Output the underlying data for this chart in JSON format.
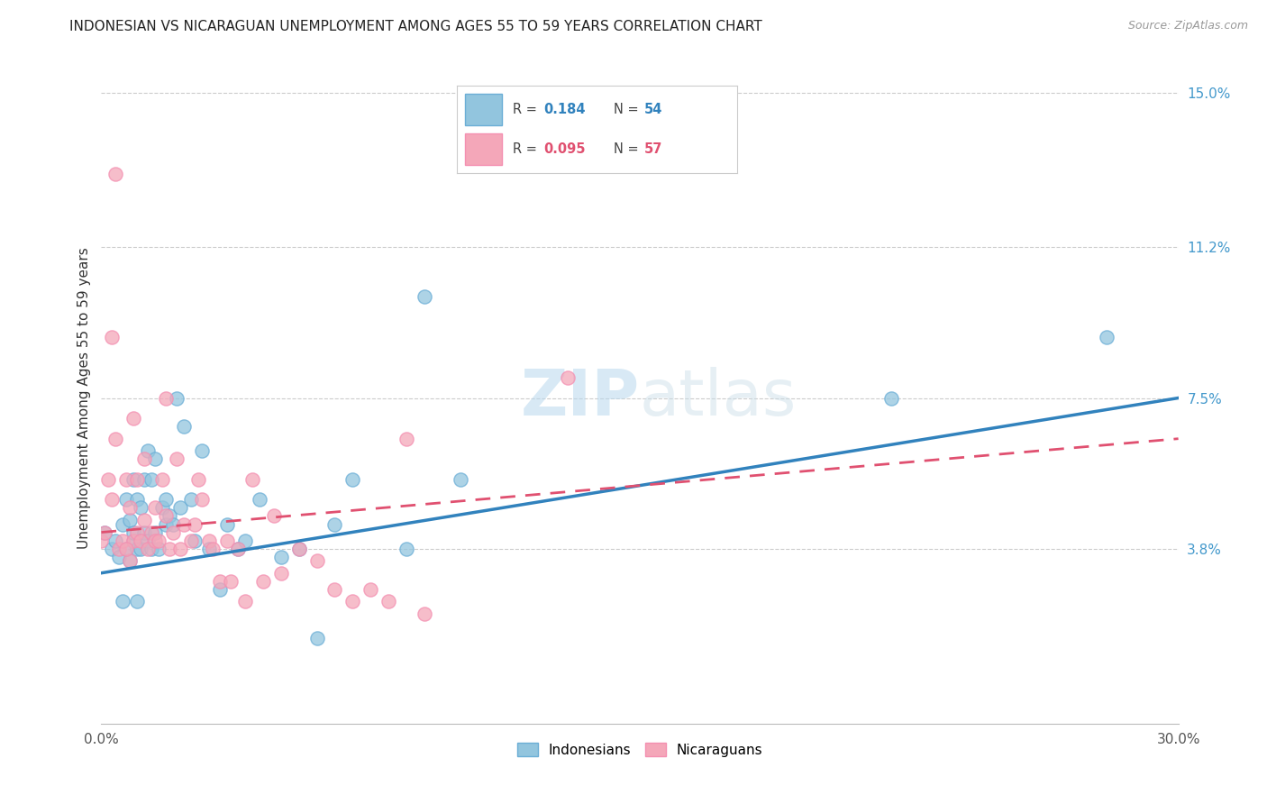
{
  "title": "INDONESIAN VS NICARAGUAN UNEMPLOYMENT AMONG AGES 55 TO 59 YEARS CORRELATION CHART",
  "source": "Source: ZipAtlas.com",
  "ylabel": "Unemployment Among Ages 55 to 59 years",
  "xlim": [
    0.0,
    0.3
  ],
  "ylim": [
    -0.005,
    0.155
  ],
  "y_ticks_right": [
    0.038,
    0.075,
    0.112,
    0.15
  ],
  "y_tick_labels_right": [
    "3.8%",
    "7.5%",
    "11.2%",
    "15.0%"
  ],
  "indonesian_R": "0.184",
  "indonesian_N": "54",
  "nicaraguan_R": "0.095",
  "nicaraguan_N": "57",
  "blue_color": "#92c5de",
  "pink_color": "#f4a7b9",
  "blue_edge_color": "#6baed6",
  "pink_edge_color": "#f48fb1",
  "blue_line_color": "#3182bd",
  "pink_line_color": "#e05070",
  "indo_x": [
    0.001,
    0.003,
    0.004,
    0.005,
    0.006,
    0.006,
    0.007,
    0.007,
    0.008,
    0.008,
    0.009,
    0.009,
    0.009,
    0.01,
    0.01,
    0.01,
    0.011,
    0.011,
    0.012,
    0.012,
    0.013,
    0.013,
    0.014,
    0.014,
    0.015,
    0.015,
    0.016,
    0.017,
    0.018,
    0.018,
    0.019,
    0.02,
    0.021,
    0.022,
    0.023,
    0.025,
    0.026,
    0.028,
    0.03,
    0.033,
    0.035,
    0.038,
    0.04,
    0.044,
    0.05,
    0.055,
    0.06,
    0.065,
    0.07,
    0.085,
    0.09,
    0.1,
    0.22,
    0.28
  ],
  "indo_y": [
    0.042,
    0.038,
    0.04,
    0.036,
    0.025,
    0.044,
    0.038,
    0.05,
    0.035,
    0.045,
    0.04,
    0.055,
    0.042,
    0.025,
    0.038,
    0.05,
    0.038,
    0.048,
    0.042,
    0.055,
    0.04,
    0.062,
    0.038,
    0.055,
    0.042,
    0.06,
    0.038,
    0.048,
    0.044,
    0.05,
    0.046,
    0.044,
    0.075,
    0.048,
    0.068,
    0.05,
    0.04,
    0.062,
    0.038,
    0.028,
    0.044,
    0.038,
    0.04,
    0.05,
    0.036,
    0.038,
    0.016,
    0.044,
    0.055,
    0.038,
    0.1,
    0.055,
    0.075,
    0.09
  ],
  "nica_x": [
    0.0,
    0.001,
    0.002,
    0.003,
    0.004,
    0.005,
    0.006,
    0.007,
    0.008,
    0.008,
    0.009,
    0.009,
    0.01,
    0.01,
    0.011,
    0.012,
    0.012,
    0.013,
    0.014,
    0.015,
    0.015,
    0.016,
    0.017,
    0.018,
    0.018,
    0.019,
    0.02,
    0.021,
    0.022,
    0.023,
    0.025,
    0.026,
    0.027,
    0.028,
    0.03,
    0.031,
    0.033,
    0.035,
    0.036,
    0.038,
    0.04,
    0.042,
    0.045,
    0.048,
    0.05,
    0.055,
    0.06,
    0.065,
    0.07,
    0.075,
    0.08,
    0.085,
    0.09,
    0.13,
    0.003,
    0.004,
    0.007
  ],
  "nica_y": [
    0.04,
    0.042,
    0.055,
    0.05,
    0.065,
    0.038,
    0.04,
    0.055,
    0.035,
    0.048,
    0.04,
    0.07,
    0.042,
    0.055,
    0.04,
    0.06,
    0.045,
    0.038,
    0.042,
    0.04,
    0.048,
    0.04,
    0.055,
    0.046,
    0.075,
    0.038,
    0.042,
    0.06,
    0.038,
    0.044,
    0.04,
    0.044,
    0.055,
    0.05,
    0.04,
    0.038,
    0.03,
    0.04,
    0.03,
    0.038,
    0.025,
    0.055,
    0.03,
    0.046,
    0.032,
    0.038,
    0.035,
    0.028,
    0.025,
    0.028,
    0.025,
    0.065,
    0.022,
    0.08,
    0.09,
    0.13,
    0.038
  ],
  "legend_R1": "R = ",
  "legend_V1": "0.184",
  "legend_N1": "N = ",
  "legend_C1": "54",
  "legend_R2": "R = ",
  "legend_V2": "0.095",
  "legend_N2": "N = ",
  "legend_C2": "57"
}
